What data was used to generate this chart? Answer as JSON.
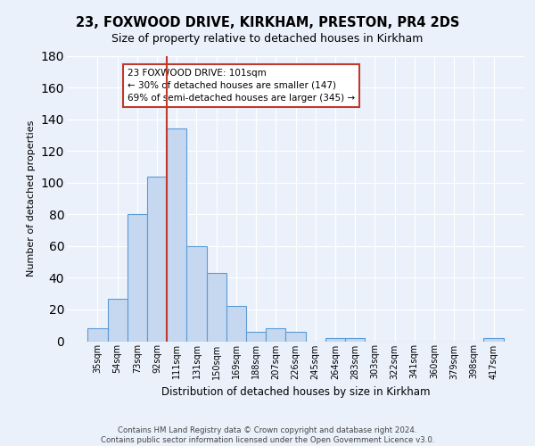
{
  "title1": "23, FOXWOOD DRIVE, KIRKHAM, PRESTON, PR4 2DS",
  "title2": "Size of property relative to detached houses in Kirkham",
  "xlabel": "Distribution of detached houses by size in Kirkham",
  "ylabel": "Number of detached properties",
  "bin_labels": [
    "35sqm",
    "54sqm",
    "73sqm",
    "92sqm",
    "111sqm",
    "131sqm",
    "150sqm",
    "169sqm",
    "188sqm",
    "207sqm",
    "226sqm",
    "245sqm",
    "264sqm",
    "283sqm",
    "303sqm",
    "322sqm",
    "341sqm",
    "360sqm",
    "379sqm",
    "398sqm",
    "417sqm"
  ],
  "bar_heights": [
    8,
    27,
    80,
    104,
    134,
    60,
    43,
    22,
    6,
    8,
    6,
    0,
    2,
    2,
    0,
    0,
    0,
    0,
    0,
    0,
    2
  ],
  "bar_color": "#c5d8f0",
  "bar_edge_color": "#5b9bd5",
  "vline_x": 3.5,
  "vline_color": "#c0392b",
  "annotation_line1": "23 FOXWOOD DRIVE: 101sqm",
  "annotation_line2": "← 30% of detached houses are smaller (147)",
  "annotation_line3": "69% of semi-detached houses are larger (345) →",
  "annotation_box_color": "white",
  "annotation_box_edge_color": "#c0392b",
  "ylim": [
    0,
    180
  ],
  "yticks": [
    0,
    20,
    40,
    60,
    80,
    100,
    120,
    140,
    160,
    180
  ],
  "footer": "Contains HM Land Registry data © Crown copyright and database right 2024.\nContains public sector information licensed under the Open Government Licence v3.0.",
  "bg_color": "#eaf1fb",
  "plot_bg_color": "#eaf1fb",
  "grid_color": "white"
}
